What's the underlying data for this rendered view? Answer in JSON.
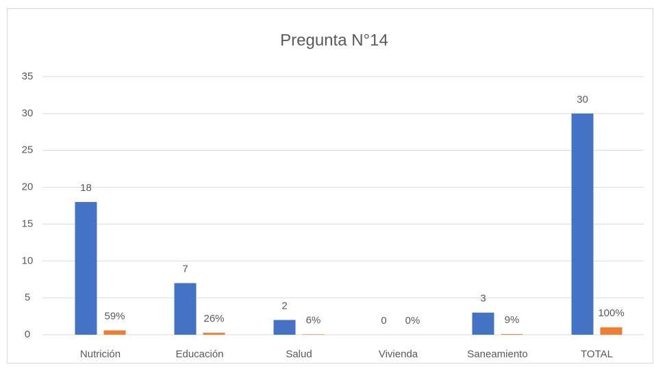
{
  "chart_data": {
    "type": "bar",
    "title": "Pregunta N°14",
    "categories": [
      "Nutrición",
      "Educación",
      "Salud",
      "Vivienda",
      "Saneamiento",
      "TOTAL"
    ],
    "series": [
      {
        "color": "#4472c4",
        "values": [
          18,
          7,
          2,
          0,
          3,
          30
        ]
      },
      {
        "color": "#ed7d31",
        "values": [
          0.59,
          0.26,
          0.06,
          0,
          0.09,
          1
        ],
        "value_labels": [
          "59%",
          "26%",
          "6%",
          "0%",
          "9%",
          "100%"
        ]
      }
    ],
    "ylim": [
      0,
      35
    ],
    "yticks": [
      0,
      5,
      10,
      15,
      20,
      25,
      30,
      35
    ],
    "grid": true
  }
}
